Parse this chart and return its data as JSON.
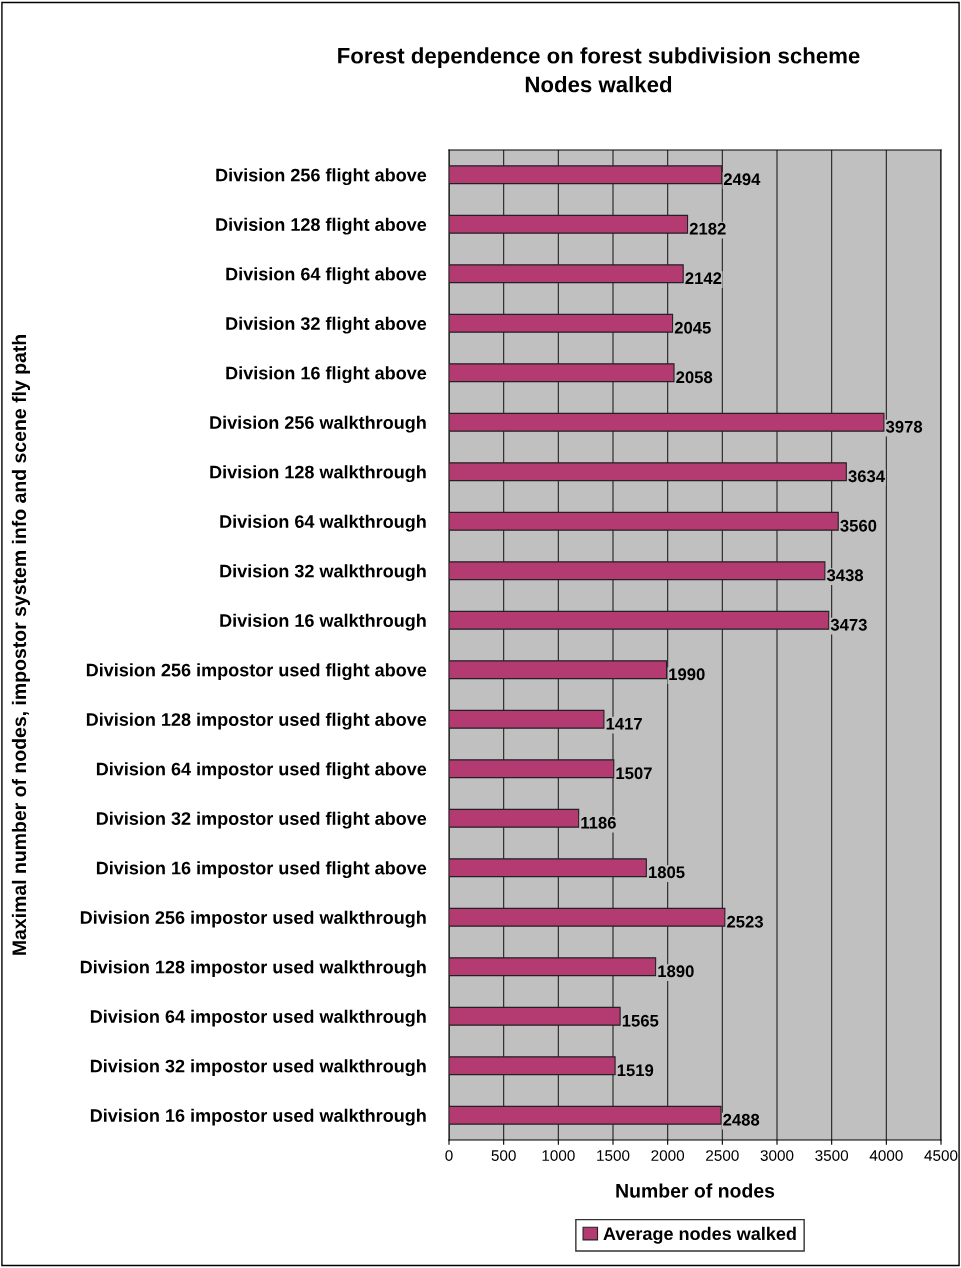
{
  "chart_data": {
    "type": "bar",
    "orientation": "horizontal",
    "title": "Forest dependence on forest subdivision scheme\nNodes walked",
    "xlabel": "Number of nodes",
    "ylabel": "Maximal number of nodes, impostor system info and scene fly path",
    "categories": [
      "Division 256 flight above",
      "Division 128 flight above",
      "Division 64 flight above",
      "Division 32 flight above",
      "Division 16 flight above",
      "Division 256 walkthrough",
      "Division 128 walkthrough",
      "Division 64 walkthrough",
      "Division 32 walkthrough",
      "Division 16 walkthrough",
      "Division 256 impostor used flight above",
      "Division 128 impostor used flight above",
      "Division 64 impostor used flight above",
      "Division 32 impostor used flight above",
      "Division 16 impostor used flight above",
      "Division 256 impostor used walkthrough",
      "Division 128 impostor used walkthrough",
      "Division 64 impostor used walkthrough",
      "Division 32 impostor used walkthrough",
      "Division 16 impostor used walkthrough"
    ],
    "series": [
      {
        "name": "Average nodes walked",
        "color": "#b43a72",
        "values": [
          2494,
          2182,
          2142,
          2045,
          2058,
          3978,
          3634,
          3560,
          3438,
          3473,
          1990,
          1417,
          1507,
          1186,
          1805,
          2523,
          1890,
          1565,
          1519,
          2488
        ]
      }
    ],
    "xlim": [
      0,
      4500
    ],
    "xticks": [
      0,
      500,
      1000,
      1500,
      2000,
      2500,
      3000,
      3500,
      4000,
      4500
    ],
    "grid": "x",
    "legend": "bottom",
    "data_labels": true
  }
}
